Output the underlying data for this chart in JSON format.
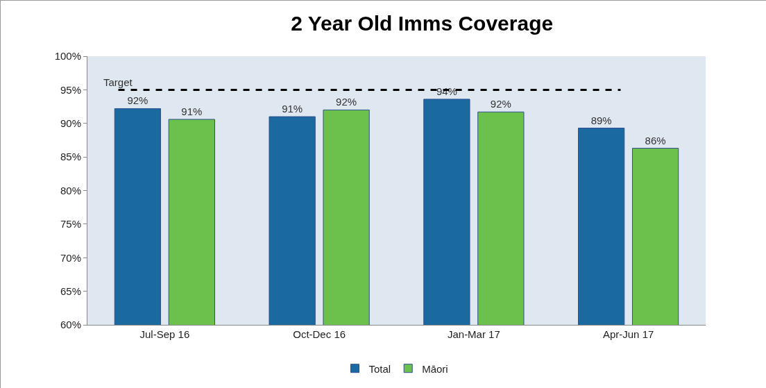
{
  "chart_data": {
    "type": "bar",
    "title": "2 Year Old Imms Coverage",
    "categories": [
      "Jul-Sep 16",
      "Oct-Dec 16",
      "Jan-Mar 17",
      "Apr-Jun 17"
    ],
    "series": [
      {
        "name": "Total",
        "color": "#1a6aa0",
        "values": [
          92.2,
          91.0,
          93.6,
          89.3
        ],
        "value_labels": [
          "92%",
          "91%",
          "94%",
          "89%"
        ]
      },
      {
        "name": "Māori",
        "color": "#6cc04c",
        "values": [
          90.6,
          92.0,
          91.7,
          86.3
        ],
        "value_labels": [
          "91%",
          "92%",
          "92%",
          "86%"
        ]
      }
    ],
    "ylim": [
      60,
      100
    ],
    "yticks": [
      {
        "value": 60,
        "label": "60%"
      },
      {
        "value": 65,
        "label": "65%"
      },
      {
        "value": 70,
        "label": "70%"
      },
      {
        "value": 75,
        "label": "75%"
      },
      {
        "value": 80,
        "label": "80%"
      },
      {
        "value": 85,
        "label": "85%"
      },
      {
        "value": 90,
        "label": "90%"
      },
      {
        "value": 95,
        "label": "95%"
      },
      {
        "value": 100,
        "label": "100%"
      }
    ],
    "ref_lines": [
      {
        "axis": "y",
        "value": 95,
        "label": "Target",
        "color": "#000000",
        "line_style": "dashed"
      }
    ],
    "grid": false,
    "legend": "bottom"
  }
}
